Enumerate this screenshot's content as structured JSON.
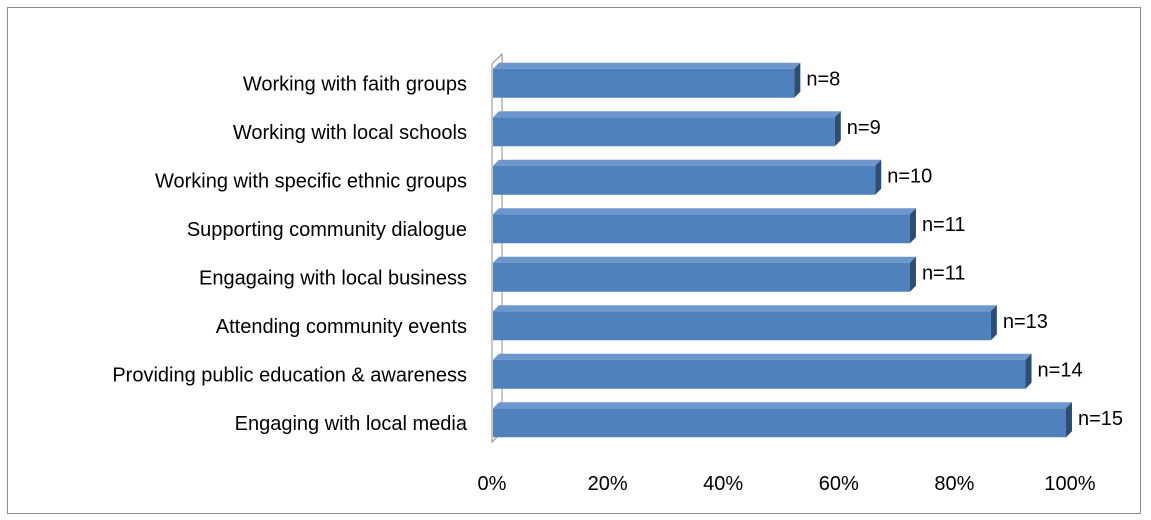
{
  "chart_data": {
    "type": "bar",
    "orientation": "horizontal",
    "style": "3d",
    "title": "",
    "xlabel": "",
    "ylabel": "",
    "xlim": [
      0,
      100
    ],
    "x_ticks": [
      "0%",
      "20%",
      "40%",
      "60%",
      "80%",
      "100%"
    ],
    "categories": [
      "Working with faith groups",
      "Working with local schools",
      "Working with specific ethnic groups",
      "Supporting community dialogue",
      "Engagaing with local business ",
      "Attending community events",
      "Providing public education & awareness",
      "Engaging with local media"
    ],
    "values": [
      53,
      60,
      67,
      73,
      73,
      87,
      93,
      100
    ],
    "data_labels": [
      "n=8",
      "n=9",
      "n=10",
      "n=11",
      "n=11",
      "n=13",
      "n=14",
      "n=15"
    ],
    "bar_color": "#4f81bd",
    "bar_top_color": "#6d97cc",
    "bar_side_color": "#2c4d75",
    "grid": false,
    "legend": "none"
  }
}
